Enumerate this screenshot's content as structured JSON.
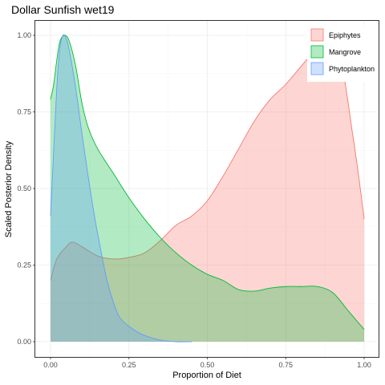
{
  "chart_data": {
    "type": "area",
    "title": "Dollar Sunfish wet19",
    "xlabel": "Proportion of Diet",
    "ylabel": "Scaled Posterior Density",
    "xlim": [
      0,
      1
    ],
    "ylim": [
      0,
      1
    ],
    "x_ticks": [
      "0.00",
      "0.25",
      "0.50",
      "0.75",
      "1.00"
    ],
    "y_ticks": [
      "0.00",
      "0.25",
      "0.50",
      "0.75",
      "1.00"
    ],
    "grid": true,
    "legend_position": "top-right",
    "series": [
      {
        "name": "Epiphytes",
        "fill": "#F8766D",
        "stroke": "#F8766D",
        "points": [
          [
            0,
            0.2
          ],
          [
            0.02,
            0.27
          ],
          [
            0.05,
            0.31
          ],
          [
            0.07,
            0.325
          ],
          [
            0.1,
            0.31
          ],
          [
            0.15,
            0.28
          ],
          [
            0.2,
            0.27
          ],
          [
            0.25,
            0.275
          ],
          [
            0.3,
            0.29
          ],
          [
            0.35,
            0.33
          ],
          [
            0.4,
            0.38
          ],
          [
            0.45,
            0.41
          ],
          [
            0.5,
            0.46
          ],
          [
            0.55,
            0.54
          ],
          [
            0.6,
            0.63
          ],
          [
            0.65,
            0.72
          ],
          [
            0.7,
            0.79
          ],
          [
            0.75,
            0.84
          ],
          [
            0.8,
            0.9
          ],
          [
            0.85,
            0.96
          ],
          [
            0.88,
            0.995
          ],
          [
            0.9,
            0.99
          ],
          [
            0.92,
            0.94
          ],
          [
            0.94,
            0.84
          ],
          [
            0.96,
            0.7
          ],
          [
            0.98,
            0.56
          ],
          [
            1.0,
            0.4
          ]
        ]
      },
      {
        "name": "Mangrove",
        "fill": "#00BA38",
        "stroke": "#00BA38",
        "points": [
          [
            0,
            0.79
          ],
          [
            0.01,
            0.84
          ],
          [
            0.02,
            0.92
          ],
          [
            0.03,
            0.98
          ],
          [
            0.045,
            1.0
          ],
          [
            0.06,
            0.98
          ],
          [
            0.08,
            0.9
          ],
          [
            0.1,
            0.78
          ],
          [
            0.12,
            0.7
          ],
          [
            0.15,
            0.63
          ],
          [
            0.2,
            0.55
          ],
          [
            0.25,
            0.47
          ],
          [
            0.3,
            0.4
          ],
          [
            0.35,
            0.34
          ],
          [
            0.4,
            0.29
          ],
          [
            0.45,
            0.25
          ],
          [
            0.5,
            0.22
          ],
          [
            0.55,
            0.2
          ],
          [
            0.6,
            0.17
          ],
          [
            0.65,
            0.165
          ],
          [
            0.7,
            0.175
          ],
          [
            0.75,
            0.18
          ],
          [
            0.8,
            0.18
          ],
          [
            0.85,
            0.18
          ],
          [
            0.9,
            0.16
          ],
          [
            0.95,
            0.1
          ],
          [
            1.0,
            0.04
          ]
        ]
      },
      {
        "name": "Phytoplankton",
        "fill": "#619CFF",
        "stroke": "#619CFF",
        "points": [
          [
            0,
            0.41
          ],
          [
            0.01,
            0.62
          ],
          [
            0.02,
            0.83
          ],
          [
            0.03,
            0.96
          ],
          [
            0.04,
            1.0
          ],
          [
            0.05,
            0.99
          ],
          [
            0.06,
            0.95
          ],
          [
            0.08,
            0.83
          ],
          [
            0.1,
            0.68
          ],
          [
            0.12,
            0.54
          ],
          [
            0.14,
            0.41
          ],
          [
            0.16,
            0.3
          ],
          [
            0.18,
            0.2
          ],
          [
            0.2,
            0.13
          ],
          [
            0.22,
            0.08
          ],
          [
            0.25,
            0.05
          ],
          [
            0.28,
            0.03
          ],
          [
            0.3,
            0.02
          ],
          [
            0.35,
            0.005
          ],
          [
            0.4,
            0.0
          ],
          [
            0.45,
            0.0
          ]
        ]
      }
    ]
  }
}
